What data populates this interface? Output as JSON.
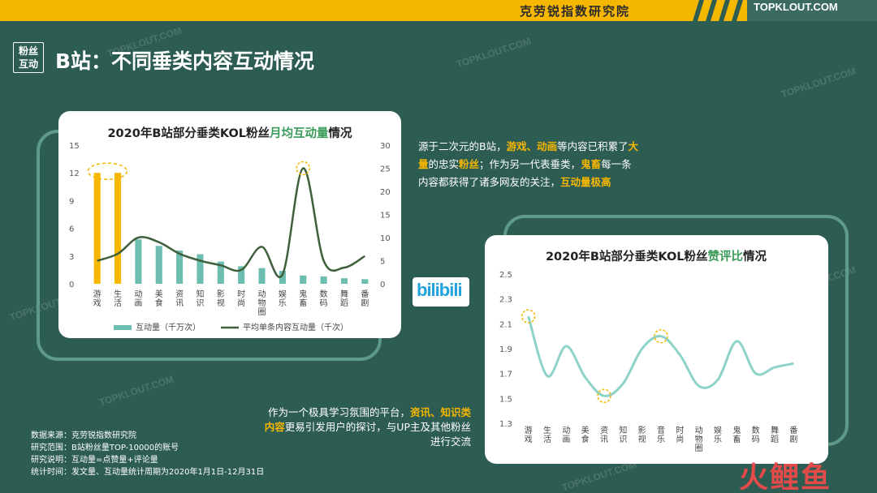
{
  "header": {
    "institute": "克劳锐指数研究院",
    "brand": "TOPKLOUT.COM"
  },
  "tag": {
    "line1": "粉丝",
    "line2": "互动"
  },
  "page_title": "B站：不同垂类内容互动情况",
  "watermark_text": "TOPKLOUT.COM",
  "logo_text": "bilibili",
  "colors": {
    "bar": "#6dbdb1",
    "bar_highlight": "#f5b700",
    "line": "#3f5f3c",
    "line2": "#8dd3c8",
    "accent": "#f5b700",
    "bg": "#2d5c52"
  },
  "description1": {
    "p1": "源于二次元的B站，",
    "h1": "游戏、动画",
    "p2": "等内容已积累了",
    "h2": "大量",
    "p3": "的忠实",
    "h3": "粉丝",
    "p4": "；作为另一代表垂类，",
    "h4": "鬼畜",
    "p5": "每一条内容都获得了诸多网友的关注，",
    "h5": "互动量极高"
  },
  "description2": {
    "p1": "作为一个极具学习氛围的平台，",
    "h1": "资讯、知识类内容",
    "p2": "更易引发用户的探讨，与UP主及其他粉丝进行交流"
  },
  "notes": [
    "数据来源：克劳锐指数研究院",
    "研究范围：B站粉丝量TOP-10000的账号",
    "研究说明：互动量=点赞量+评论量",
    "统计时间：发文量、互动量统计周期为2020年1月1日-12月31日"
  ],
  "footer_mark": "火鲤鱼",
  "chart_data": [
    {
      "type": "bar",
      "title": "2020年B站部分垂类KOL粉丝月均互动量情况",
      "title_plain": "2020年B站部分垂类KOL粉丝",
      "title_highlight": "月均互动量",
      "title_tail": "情况",
      "categories": [
        "游戏",
        "生活",
        "动画",
        "美食",
        "资讯",
        "知识",
        "影视",
        "时尚",
        "动物圈",
        "娱乐",
        "鬼畜",
        "数码",
        "舞蹈",
        "番剧"
      ],
      "series": [
        {
          "name": "互动量（千万次）",
          "type": "bar",
          "axis": "left",
          "values": [
            12,
            12,
            4.8,
            4.1,
            3.6,
            3.2,
            2.4,
            1.9,
            1.7,
            1.4,
            0.9,
            0.8,
            0.6,
            0.5
          ],
          "highlight": [
            0,
            1
          ]
        },
        {
          "name": "平均单条内容互动量（千次）",
          "type": "line",
          "axis": "right",
          "values": [
            5,
            6.5,
            10,
            9,
            6.5,
            5,
            4,
            3,
            8,
            2,
            25,
            5,
            3.5,
            6
          ]
        }
      ],
      "ylim_left": [
        0,
        15
      ],
      "yticks_left": [
        0,
        3,
        6,
        9,
        12,
        15
      ],
      "ylim_right": [
        0,
        30
      ],
      "yticks_right": [
        0,
        5,
        10,
        15,
        20,
        25,
        30
      ],
      "legend": "bottom"
    },
    {
      "type": "line",
      "title": "2020年B站部分垂类KOL粉丝赞评比情况",
      "title_plain": "2020年B站部分垂类KOL粉丝",
      "title_highlight": "赞评比",
      "title_tail": "情况",
      "categories": [
        "游戏",
        "生活",
        "动画",
        "美食",
        "资讯",
        "知识",
        "影视",
        "音乐",
        "时尚",
        "动物圈",
        "娱乐",
        "鬼畜",
        "数码",
        "舞蹈",
        "番剧"
      ],
      "values": [
        2.16,
        1.68,
        1.92,
        1.67,
        1.52,
        1.62,
        1.9,
        2.0,
        1.85,
        1.6,
        1.65,
        1.96,
        1.7,
        1.75,
        1.78
      ],
      "highlight": [
        0,
        4,
        7
      ],
      "ylim": [
        1.3,
        2.5
      ],
      "yticks": [
        1.3,
        1.5,
        1.7,
        1.9,
        2.1,
        2.3,
        2.5
      ]
    }
  ]
}
